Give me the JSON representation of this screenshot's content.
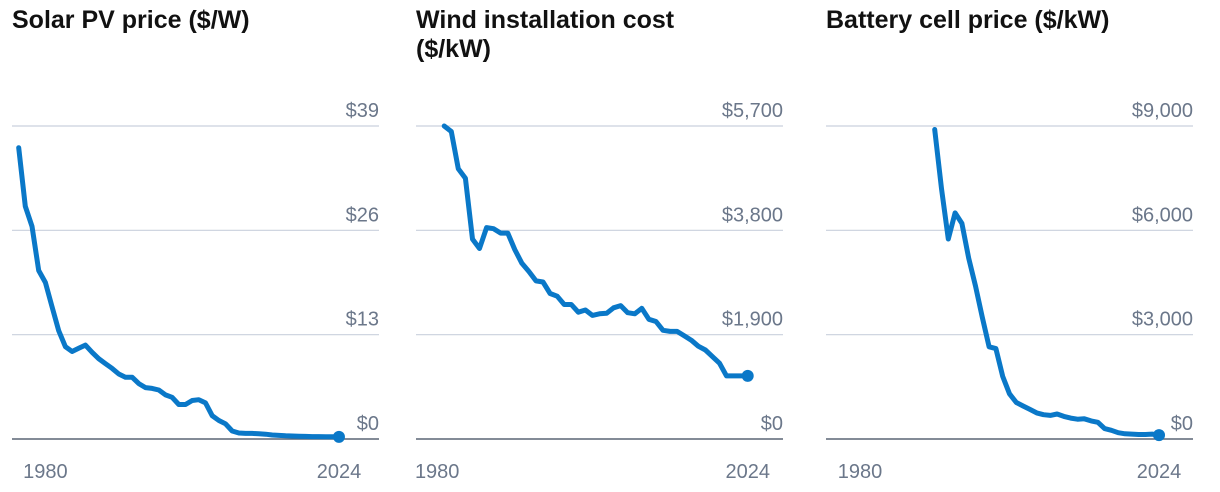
{
  "colors": {
    "line": "#0a78c8",
    "grid": "#c9d1dd",
    "axis": "#5a6575",
    "tick_text": "#6b778a",
    "title": "#111111"
  },
  "chart_data": [
    {
      "type": "line",
      "title": "Solar PV price ($/W)",
      "xlabel": "",
      "ylabel": "",
      "x_ticks": [
        "1980",
        "2024"
      ],
      "y_ticks": [
        {
          "value": 39,
          "label": "$39"
        },
        {
          "value": 26,
          "label": "$26"
        },
        {
          "value": 13,
          "label": "$13"
        },
        {
          "value": 0,
          "label": "$0"
        }
      ],
      "xlim": [
        1975,
        2030
      ],
      "ylim": [
        0,
        39
      ],
      "series": [
        {
          "name": "Solar PV price",
          "x": [
            1976,
            1977,
            1978,
            1979,
            1980,
            1981,
            1982,
            1983,
            1984,
            1985,
            1986,
            1987,
            1988,
            1989,
            1990,
            1991,
            1992,
            1993,
            1994,
            1995,
            1996,
            1997,
            1998,
            1999,
            2000,
            2001,
            2002,
            2003,
            2004,
            2005,
            2006,
            2007,
            2008,
            2009,
            2010,
            2011,
            2012,
            2013,
            2014,
            2015,
            2016,
            2017,
            2018,
            2019,
            2020,
            2021,
            2022,
            2023,
            2024
          ],
          "y": [
            36.3,
            29.0,
            26.5,
            21.0,
            19.5,
            16.5,
            13.5,
            11.5,
            10.9,
            11.3,
            11.7,
            10.8,
            10.0,
            9.4,
            8.8,
            8.1,
            7.7,
            7.7,
            6.9,
            6.4,
            6.3,
            6.1,
            5.5,
            5.2,
            4.3,
            4.3,
            4.8,
            4.9,
            4.5,
            2.9,
            2.3,
            1.9,
            1.0,
            0.75,
            0.7,
            0.7,
            0.65,
            0.6,
            0.5,
            0.45,
            0.4,
            0.38,
            0.35,
            0.32,
            0.3,
            0.3,
            0.28,
            0.28,
            0.27
          ]
        }
      ],
      "end_marker": true
    },
    {
      "type": "line",
      "title": "Wind installation cost ($/kW)",
      "xlabel": "",
      "ylabel": "",
      "x_ticks": [
        "1980",
        "2024"
      ],
      "y_ticks": [
        {
          "value": 5700,
          "label": "$5,700"
        },
        {
          "value": 3800,
          "label": "$3,800"
        },
        {
          "value": 1900,
          "label": "$1,900"
        },
        {
          "value": 0,
          "label": "$0"
        }
      ],
      "xlim": [
        1977,
        2029
      ],
      "ylim": [
        0,
        5700
      ],
      "series": [
        {
          "name": "Wind installation cost",
          "x": [
            1981,
            1982,
            1983,
            1984,
            1985,
            1986,
            1987,
            1988,
            1989,
            1990,
            1991,
            1992,
            1993,
            1994,
            1995,
            1996,
            1997,
            1998,
            1999,
            2000,
            2001,
            2002,
            2003,
            2004,
            2005,
            2006,
            2007,
            2008,
            2009,
            2010,
            2011,
            2012,
            2013,
            2014,
            2015,
            2016,
            2017,
            2018,
            2019,
            2020,
            2021,
            2022,
            2023,
            2024
          ],
          "y": [
            5700,
            5600,
            4920,
            4750,
            3640,
            3470,
            3850,
            3830,
            3750,
            3750,
            3450,
            3200,
            3050,
            2880,
            2860,
            2650,
            2600,
            2450,
            2450,
            2310,
            2350,
            2250,
            2280,
            2290,
            2390,
            2430,
            2300,
            2280,
            2380,
            2180,
            2140,
            1980,
            1960,
            1960,
            1880,
            1800,
            1690,
            1620,
            1500,
            1380,
            1150,
            1150,
            1150,
            1150
          ]
        }
      ],
      "end_marker": true
    },
    {
      "type": "line",
      "title": "Battery cell price ($/kW)",
      "xlabel": "",
      "ylabel": "",
      "x_ticks": [
        "1980",
        "2024"
      ],
      "y_ticks": [
        {
          "value": 9000,
          "label": "$9,000"
        },
        {
          "value": 6000,
          "label": "$6,000"
        },
        {
          "value": 3000,
          "label": "$3,000"
        },
        {
          "value": 0,
          "label": "$0"
        }
      ],
      "xlim": [
        1975,
        2029
      ],
      "ylim": [
        0,
        9000
      ],
      "series": [
        {
          "name": "Battery cell price",
          "x": [
            1991,
            1992,
            1993,
            1994,
            1995,
            1996,
            1997,
            1998,
            1999,
            2000,
            2001,
            2002,
            2003,
            2004,
            2005,
            2006,
            2007,
            2008,
            2009,
            2010,
            2011,
            2012,
            2013,
            2014,
            2015,
            2016,
            2017,
            2018,
            2019,
            2020,
            2021,
            2022,
            2023,
            2024
          ],
          "y": [
            8900,
            7200,
            5750,
            6500,
            6200,
            5200,
            4400,
            3500,
            2650,
            2600,
            1800,
            1300,
            1050,
            950,
            850,
            750,
            700,
            680,
            720,
            650,
            600,
            570,
            580,
            520,
            480,
            300,
            250,
            180,
            150,
            140,
            130,
            130,
            140,
            110
          ]
        }
      ],
      "end_marker": true
    }
  ]
}
